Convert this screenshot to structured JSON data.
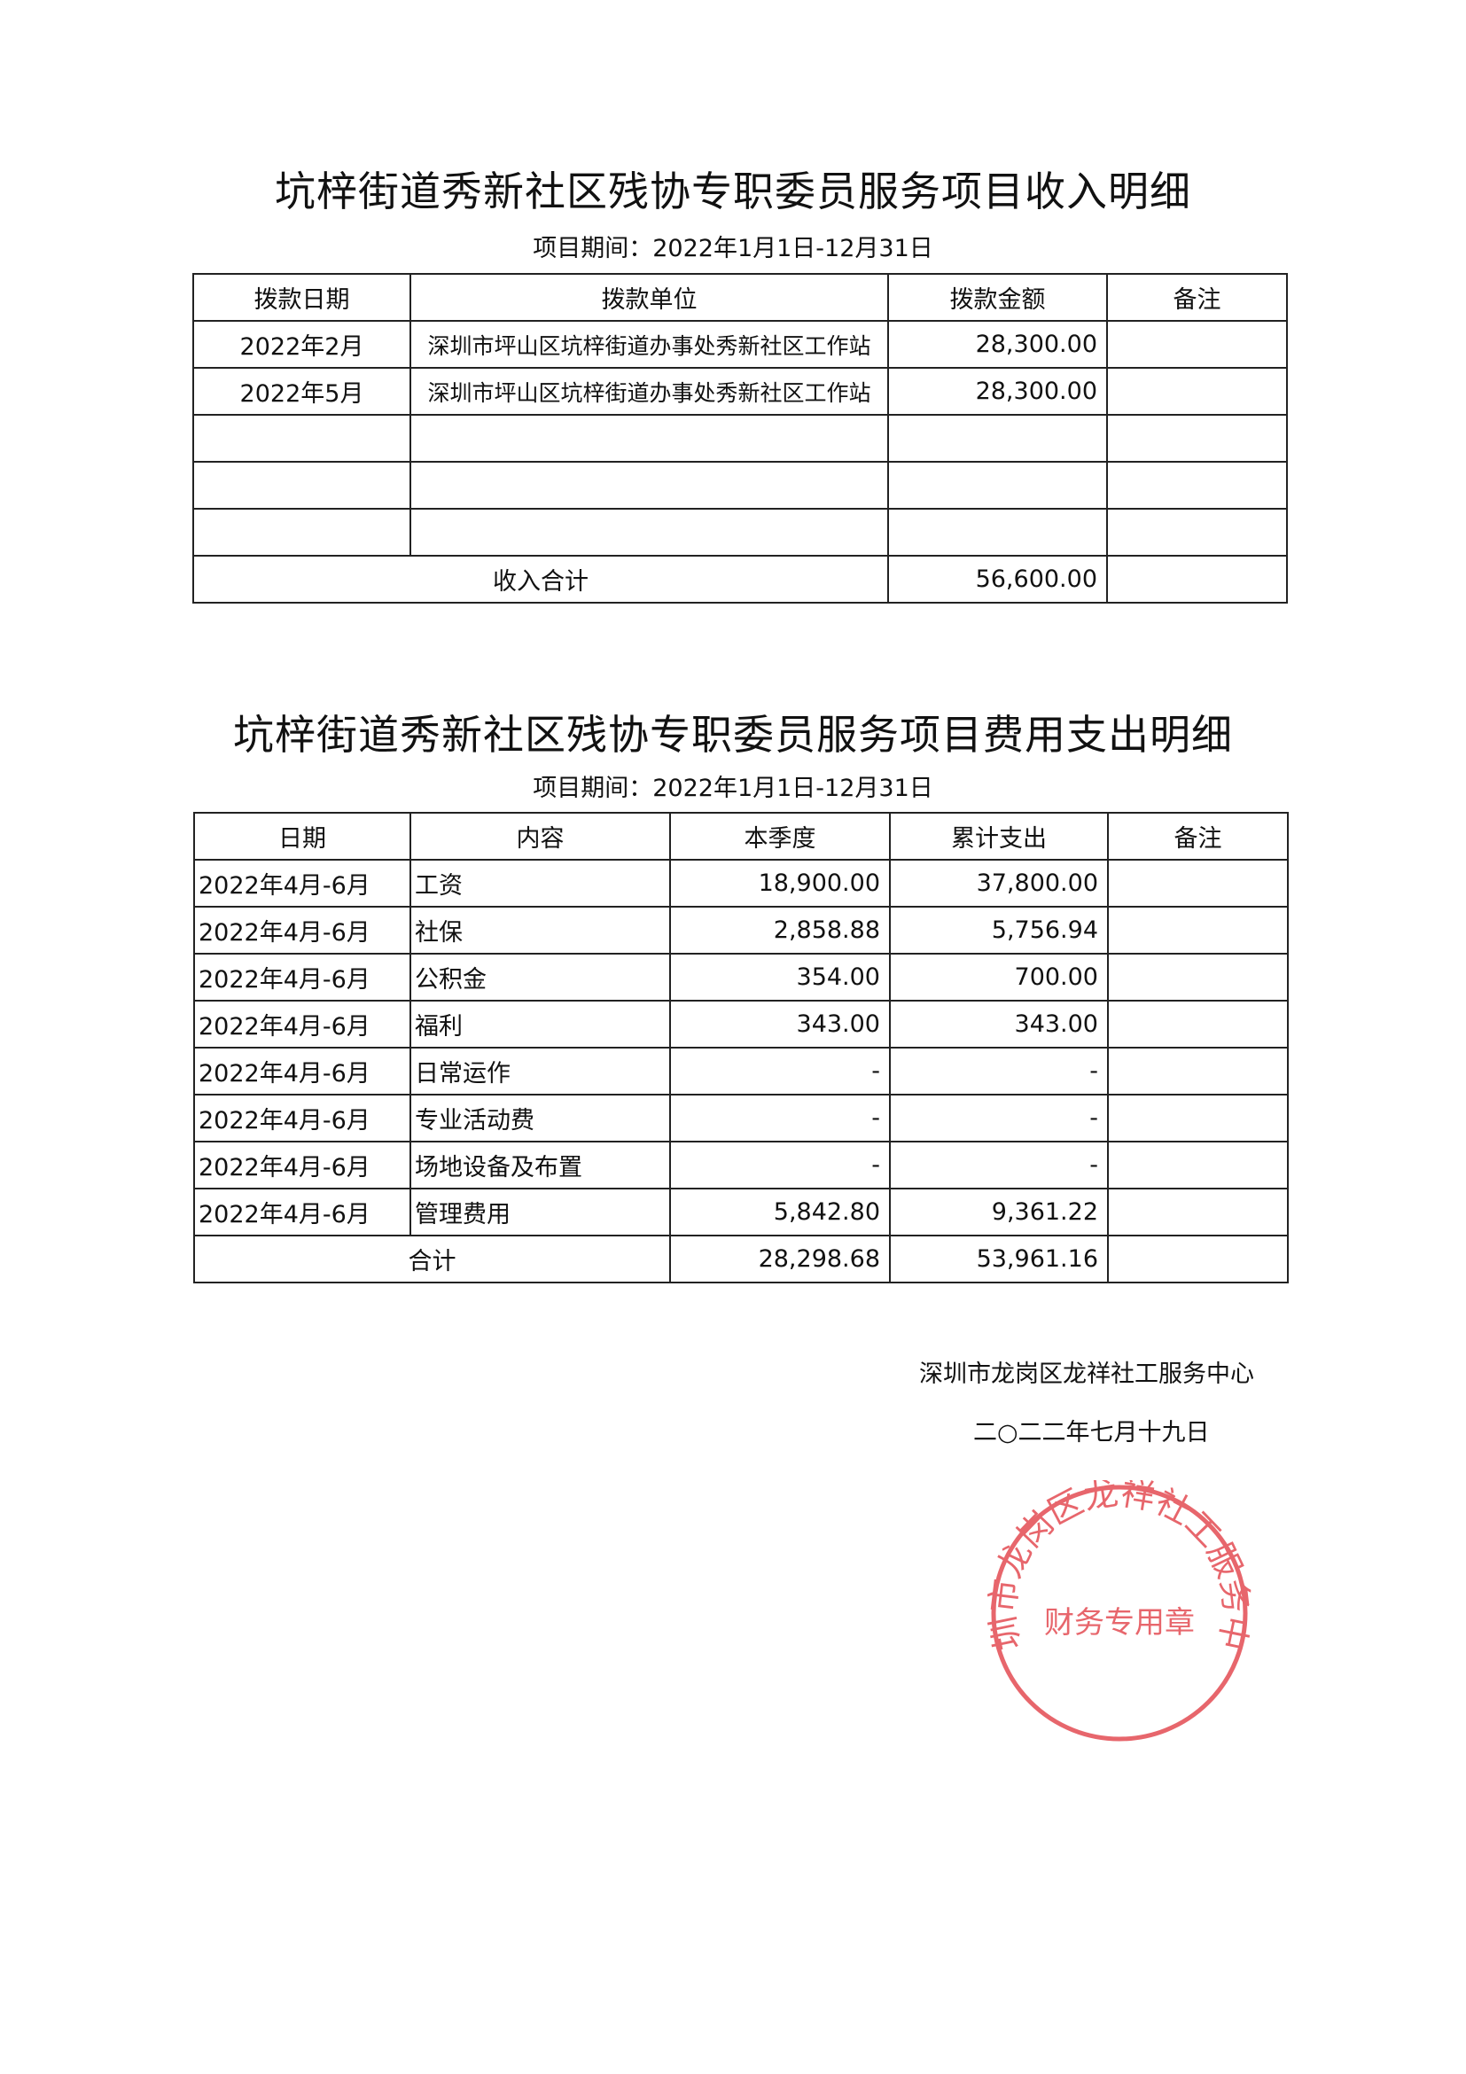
{
  "income": {
    "title": "坑梓街道秀新社区残协专职委员服务项目收入明细",
    "period": "项目期间：2022年1月1日-12月31日",
    "headers": [
      "拨款日期",
      "拨款单位",
      "拨款金额",
      "备注"
    ],
    "rows": [
      {
        "date": "2022年2月",
        "unit": "深圳市坪山区坑梓街道办事处秀新社区工作站",
        "amount": "28,300.00",
        "note": ""
      },
      {
        "date": "2022年5月",
        "unit": "深圳市坪山区坑梓街道办事处秀新社区工作站",
        "amount": "28,300.00",
        "note": ""
      },
      {
        "date": "",
        "unit": "",
        "amount": "",
        "note": ""
      },
      {
        "date": "",
        "unit": "",
        "amount": "",
        "note": ""
      },
      {
        "date": "",
        "unit": "",
        "amount": "",
        "note": ""
      }
    ],
    "total_label": "收入合计",
    "total_amount": "56,600.00"
  },
  "expense": {
    "title": "坑梓街道秀新社区残协专职委员服务项目费用支出明细",
    "period": "项目期间：2022年1月1日-12月31日",
    "headers": [
      "日期",
      "内容",
      "本季度",
      "累计支出",
      "备注"
    ],
    "rows": [
      {
        "date": "2022年4月-6月",
        "item": "工资",
        "quarter": "18,900.00",
        "cumulative": "37,800.00"
      },
      {
        "date": "2022年4月-6月",
        "item": "社保",
        "quarter": "2,858.88",
        "cumulative": "5,756.94"
      },
      {
        "date": "2022年4月-6月",
        "item": "公积金",
        "quarter": "354.00",
        "cumulative": "700.00"
      },
      {
        "date": "2022年4月-6月",
        "item": "福利",
        "quarter": "343.00",
        "cumulative": "343.00"
      },
      {
        "date": "2022年4月-6月",
        "item": "日常运作",
        "quarter": "-",
        "cumulative": "-"
      },
      {
        "date": "2022年4月-6月",
        "item": "专业活动费",
        "quarter": "-",
        "cumulative": "-"
      },
      {
        "date": "2022年4月-6月",
        "item": "场地设备及布置",
        "quarter": "-",
        "cumulative": "-"
      },
      {
        "date": "2022年4月-6月",
        "item": "管理费用",
        "quarter": "5,842.80",
        "cumulative": "9,361.22"
      }
    ],
    "total_label": "合计",
    "total_quarter": "28,298.68",
    "total_cumulative": "53,961.16"
  },
  "signature": {
    "org": "深圳市龙岗区龙祥社工服务中心",
    "date": "二○二二年七月十九日"
  },
  "stamp": {
    "ring_text": "深圳市龙岗区龙祥社工服务中心",
    "center_text": "财务专用章",
    "color": "#e0343c"
  }
}
